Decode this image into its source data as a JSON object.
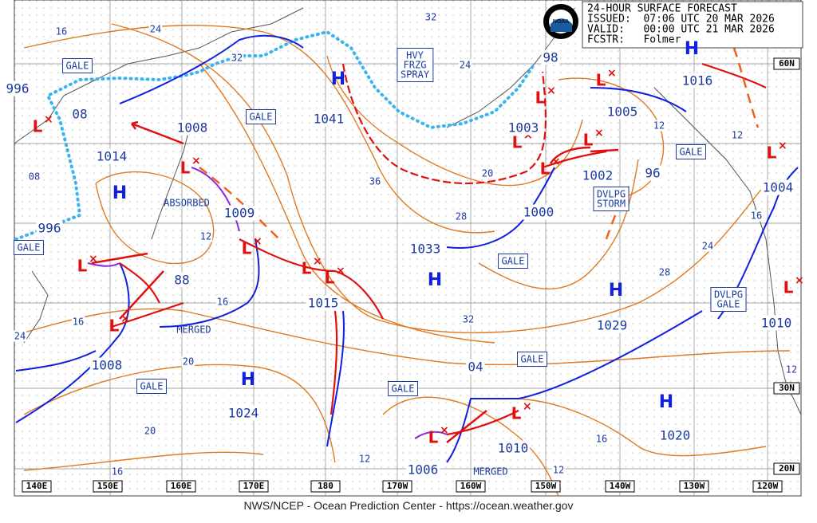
{
  "header": {
    "lines": [
      "24-HOUR SURFACE FORECAST",
      "ISSUED:  07:06 UTC 20 MAR 2026",
      "VALID:   00:00 UTC 21 MAR 2026",
      "FCSTR:   Folmer"
    ]
  },
  "highs": [
    "H",
    "H",
    "H",
    "H",
    "H",
    "H",
    "H"
  ],
  "lows": [
    "L",
    "L",
    "L",
    "L",
    "L",
    "L",
    "L",
    "L",
    "L",
    "L",
    "L",
    "L",
    "L",
    "L",
    "L",
    "L"
  ],
  "pressures": [
    "996",
    "08",
    "1014",
    "996",
    "1008",
    "1009",
    "88",
    "1008",
    "1024",
    "1015",
    "1041",
    "1033",
    "1003",
    "1002",
    "1000",
    "1005",
    "1016",
    "96",
    "1029",
    "1004",
    "1010",
    "04",
    "1010",
    "1006",
    "1020",
    "98"
  ],
  "isobar_labels": [
    "16",
    "24",
    "32",
    "32",
    "24",
    "36",
    "20",
    "28",
    "12",
    "16",
    "16",
    "24",
    "20",
    "20",
    "16",
    "12",
    "32",
    "28",
    "24",
    "16",
    "12",
    "12",
    "16",
    "12",
    "12",
    "08"
  ],
  "boxes": [
    [
      "GALE"
    ],
    [
      "GALE"
    ],
    [
      "HVY",
      "FRZG",
      "SPRAY"
    ],
    [
      "GALE"
    ],
    [
      "GALE"
    ],
    [
      "GALE"
    ],
    [
      "DVLPG",
      "STORM"
    ],
    [
      "DVLPG",
      "GALE"
    ],
    [
      "GALE"
    ],
    [
      "GALE"
    ],
    [
      "GALE"
    ]
  ],
  "notes": [
    "ABSORBED",
    "MERGED",
    "MERGED"
  ],
  "latitudes": [
    "60N",
    "30N",
    "20N"
  ],
  "longitudes": [
    "140E",
    "150E",
    "160E",
    "170E",
    "180",
    "170W",
    "160W",
    "150W",
    "140W",
    "130W",
    "120W"
  ],
  "logo": "NOAA",
  "footer": "NWS/NCEP - Ocean Prediction Center - https://ocean.weather.gov"
}
